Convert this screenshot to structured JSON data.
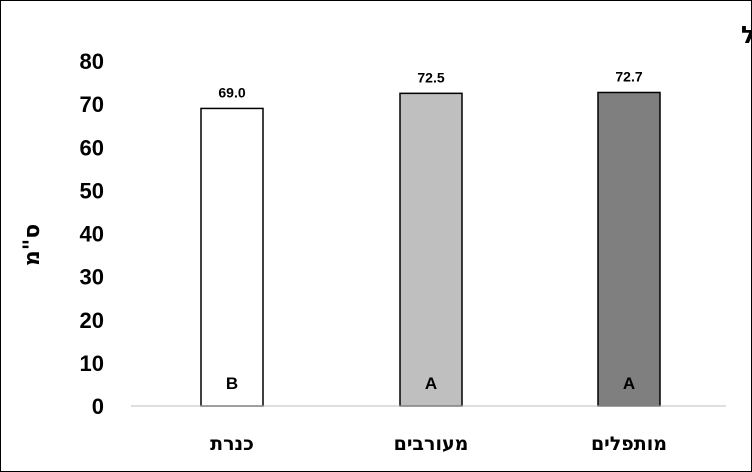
{
  "chart_data": {
    "type": "bar",
    "title": "היקף גזעול",
    "ylabel": "ס\"מ",
    "xlabel": "",
    "categories": [
      "כנרת",
      "מעורבים",
      "מותפלים"
    ],
    "values": [
      69.0,
      72.5,
      72.7
    ],
    "value_labels": [
      "69.0",
      "72.5",
      "72.7"
    ],
    "significance_letters": [
      "B",
      "A",
      "A"
    ],
    "bar_colors": [
      "#ffffff",
      "#bfbfbf",
      "#7f7f7f"
    ],
    "letter_colors": [
      "#000000",
      "#000000",
      "#000000"
    ],
    "ylim": [
      0,
      80
    ],
    "yticks": [
      0,
      10,
      20,
      30,
      40,
      50,
      60,
      70,
      80
    ],
    "grid": false,
    "legend": "none"
  }
}
